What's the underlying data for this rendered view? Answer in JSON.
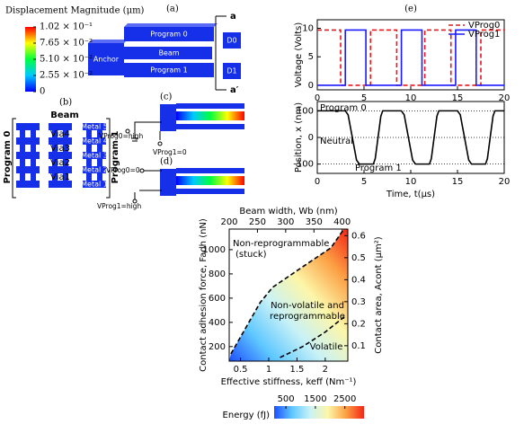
{
  "panels": {
    "a": {
      "label": "(a)",
      "colorbar": {
        "title": "Displacement Magnitude (μm)",
        "lim": [
          0,
          0.102
        ],
        "colors": [
          "#0000ff",
          "#00c8ff",
          "#00ff40",
          "#ffff00",
          "#ff0000"
        ],
        "ticks": [
          {
            "value": 0.102,
            "label": "1.02 × 10⁻¹"
          },
          {
            "value": 0.0765,
            "label": "7.65 × 10⁻²"
          },
          {
            "value": 0.051,
            "label": "5.10 × 10⁻²"
          },
          {
            "value": 0.0255,
            "label": "2.55 × 10⁻²"
          },
          0
        ]
      },
      "anchor": "Anchor",
      "program0": "Program 0",
      "beam": "Beam",
      "program1": "Program 1",
      "d0": "D0",
      "d1": "D1",
      "cut_top": "a",
      "cut_bottom": "a′"
    },
    "b": {
      "label": "(b)",
      "beam": "Beam",
      "program0": "Program 0",
      "program1": "Program 1",
      "metals": [
        "Metal 5",
        "Metal 4",
        "Metal 3",
        "Metal 2",
        "Metal 1"
      ],
      "vias": [
        "Via4",
        "Via3",
        "Via2",
        "Via1"
      ]
    },
    "c": {
      "label": "(c)",
      "v_prog0": "VProg0=high",
      "v_prog1": "VProg1=0"
    },
    "d": {
      "label": "(d)",
      "v_prog0": "VProg0=0",
      "v_prog1": "VProg1=high"
    }
  },
  "chart_data": [
    {
      "type": "line",
      "label": "(e)",
      "ylabel": "Voltage (Volts)",
      "xlim": [
        0,
        20
      ],
      "xticks": [
        0,
        5,
        10,
        15,
        20
      ],
      "ylim": [
        -0.8,
        11.5
      ],
      "yticks": [
        0,
        5,
        10
      ],
      "legend": "upper right",
      "series": [
        {
          "name": "VProg0",
          "color": "#e8161b",
          "dash": true,
          "x": [
            0,
            2.5,
            2.5,
            5.7,
            5.7,
            8.5,
            8.5,
            11.5,
            11.5,
            14.3,
            14.3,
            17.5,
            17.5,
            20
          ],
          "values": [
            9.7,
            9.7,
            0,
            0,
            9.7,
            9.7,
            0,
            0,
            9.7,
            9.7,
            0,
            0,
            9.7,
            9.7
          ]
        },
        {
          "name": "VProg1",
          "color": "#1a1aff",
          "dash": false,
          "x": [
            0,
            3,
            3,
            5.2,
            5.2,
            9,
            9,
            11.2,
            11.2,
            14.8,
            14.8,
            17,
            17,
            20
          ],
          "values": [
            0,
            0,
            9.7,
            9.7,
            0,
            0,
            9.7,
            9.7,
            0,
            0,
            9.7,
            9.7,
            0,
            0
          ]
        }
      ]
    },
    {
      "type": "line",
      "xlabel": "Time, t(μs)",
      "ylabel": "Position, x (nm)",
      "xlim": [
        0,
        20
      ],
      "xticks": [
        0,
        5,
        10,
        15,
        20
      ],
      "ylim": [
        -135,
        135
      ],
      "yticks": [
        -100,
        0,
        100
      ],
      "grid": "y",
      "annotations": [
        "Program 0",
        "Neutral",
        "Program 1"
      ],
      "series": [
        {
          "color": "#000000",
          "dash": false,
          "x": [
            0,
            3,
            3.3,
            3.75,
            4.2,
            4.5,
            6,
            6.2,
            6.5,
            6.8,
            7,
            9,
            9.3,
            9.75,
            10.2,
            10.5,
            12,
            12.2,
            12.5,
            12.8,
            13,
            15,
            15.3,
            15.75,
            16.2,
            16.5,
            18,
            18.2,
            18.5,
            18.8,
            19,
            20
          ],
          "values": [
            100,
            100,
            85,
            0,
            -85,
            -100,
            -100,
            -80,
            0,
            80,
            100,
            100,
            85,
            0,
            -85,
            -100,
            -100,
            -80,
            0,
            80,
            100,
            100,
            85,
            0,
            -85,
            -100,
            -100,
            -80,
            0,
            80,
            100,
            100
          ]
        }
      ]
    },
    {
      "type": "contour",
      "xlabel": "Effective stiffness, keff (Nm⁻¹)",
      "x2label": "Beam width, Wb (nm)",
      "ylabel": "Contact adhesion force, Fadh (nN)",
      "y2label": "Contact area, Acont (μm²)",
      "xlim": [
        0.3,
        2.4
      ],
      "xticks": [
        0.5,
        1,
        1.5,
        2
      ],
      "x2lim": [
        200,
        410
      ],
      "x2ticks": [
        200,
        250,
        300,
        350,
        400
      ],
      "ylim": [
        80,
        1170
      ],
      "yticks": [
        200,
        400,
        600,
        800,
        1000
      ],
      "y2lim": [
        0.03,
        0.63
      ],
      "y2ticks": [
        0.1,
        0.2,
        0.3,
        0.4,
        0.5,
        0.6
      ],
      "annotations": [
        "Non-reprogrammable",
        "(stuck)",
        "Non-volatile and",
        "reprogrammable",
        "Volatile"
      ],
      "colorbar": {
        "label": "Energy (fJ)",
        "lim": [
          100,
          3150
        ],
        "ticks": [
          500,
          1500,
          2500
        ],
        "colors": [
          "#1d4fff",
          "#5fc8ff",
          "#c9f2f6",
          "#fdf6a8",
          "#fca044",
          "#f42516"
        ]
      },
      "series": [
        {
          "color": "#000000",
          "dash": true,
          "x": [
            0.33,
            0.85,
            1.07,
            1.7,
            2.1,
            2.33
          ],
          "values": [
            140,
            565,
            690,
            890,
            1015,
            1170
          ]
        },
        {
          "color": "#000000",
          "dash": true,
          "x": [
            1.2,
            1.6,
            2.0,
            2.35
          ],
          "values": [
            110,
            200,
            320,
            450
          ]
        }
      ]
    }
  ]
}
